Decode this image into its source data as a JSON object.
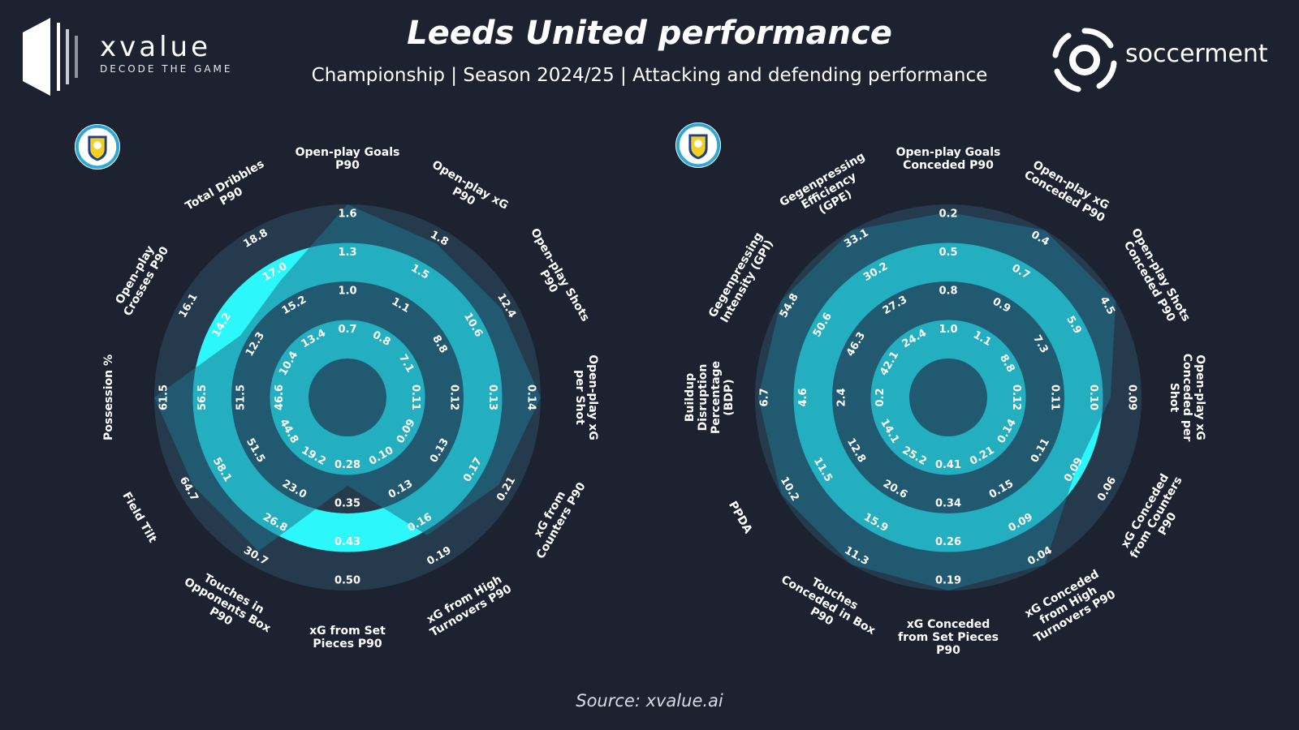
{
  "header": {
    "brand_name": "xvalue",
    "brand_tagline": "DECODE THE GAME",
    "title": "Leeds United performance",
    "subtitle": "Championship | Season 2024/25 | Attacking and defending performance",
    "partner_name": "soccerment",
    "source": "Source: xvalue.ai"
  },
  "colors": {
    "background": "#1c2230",
    "ring_dark": "#263a4d",
    "ring_light": "#2cf8fb",
    "overlay": "#1e7290",
    "crest_ring": "#2ba7d8",
    "crest_yellow": "#f4d020"
  },
  "chart_data": [
    {
      "type": "radar",
      "title": "",
      "scale": "percentile",
      "axes": [
        {
          "label": "Open-play Goals P90",
          "ticks": [
            "0.7",
            "1.0",
            "1.3",
            "1.6"
          ],
          "value": 1.0
        },
        {
          "label": "Open-play xG P90",
          "ticks": [
            "0.8",
            "1.1",
            "1.5",
            "1.8"
          ],
          "value": 0.9
        },
        {
          "label": "Open-play Shots P90",
          "ticks": [
            "7.1",
            "8.8",
            "10.6",
            "12.4"
          ],
          "value": 0.9
        },
        {
          "label": "Open-play xG per Shot",
          "ticks": [
            "0.11",
            "0.12",
            "0.13",
            "0.14"
          ],
          "value": 1.0
        },
        {
          "label": "xG from Counters P90",
          "ticks": [
            "0.09",
            "0.13",
            "0.17",
            "0.21"
          ],
          "value": 0.88
        },
        {
          "label": "xG from High Turnovers P90",
          "ticks": [
            "0.10",
            "0.13",
            "0.16",
            "0.19"
          ],
          "value": 0.78
        },
        {
          "label": "xG from Set Pieces P90",
          "ticks": [
            "0.28",
            "0.35",
            "0.43",
            "0.50"
          ],
          "value": 0.32
        },
        {
          "label": "Touches in Opponents Box P90",
          "ticks": [
            "19.2",
            "23.0",
            "26.8",
            "30.7"
          ],
          "value": 0.9
        },
        {
          "label": "Field Tilt",
          "ticks": [
            "44.8",
            "51.5",
            "58.1",
            "64.7"
          ],
          "value": 0.9
        },
        {
          "label": "Possession %",
          "ticks": [
            "46.6",
            "51.5",
            "56.5",
            "61.5"
          ],
          "value": 1.0
        },
        {
          "label": "Open-play Crosses P90",
          "ticks": [
            "10.4",
            "12.3",
            "14.2",
            "16.1"
          ],
          "value": 0.55
        },
        {
          "label": "Total Dribbles P90",
          "ticks": [
            "13.4",
            "15.2",
            "17.0",
            "18.8"
          ],
          "value": 0.62
        }
      ]
    },
    {
      "type": "radar",
      "title": "",
      "scale": "percentile",
      "axes": [
        {
          "label": "Open-play Goals Conceded P90",
          "ticks": [
            "1.0",
            "0.8",
            "0.5",
            "0.2"
          ],
          "value": 0.95
        },
        {
          "label": "Open-play xG Conceded P90",
          "ticks": [
            "1.1",
            "0.9",
            "0.7",
            "0.4"
          ],
          "value": 1.0
        },
        {
          "label": "Open-play Shots Conceded P90",
          "ticks": [
            "8.8",
            "7.3",
            "5.9",
            "4.5"
          ],
          "value": 1.0
        },
        {
          "label": "Open-play xG Conceded per Shot",
          "ticks": [
            "0.12",
            "0.11",
            "0.10",
            "0.09"
          ],
          "value": 0.8
        },
        {
          "label": "xG Conceded from Counters P90",
          "ticks": [
            "0.14",
            "0.11",
            "0.09",
            "0.06"
          ],
          "value": 0.7
        },
        {
          "label": "xG Conceded from High Turnovers P90",
          "ticks": [
            "0.21",
            "0.15",
            "0.09",
            "0.04"
          ],
          "value": 1.0
        },
        {
          "label": "xG Conceded from Set Pieces P90",
          "ticks": [
            "0.41",
            "0.34",
            "0.26",
            "0.19"
          ],
          "value": 1.0
        },
        {
          "label": "Touches Conceded in Box P90",
          "ticks": [
            "25.2",
            "20.6",
            "15.9",
            "11.3"
          ],
          "value": 1.0
        },
        {
          "label": "PPDA",
          "ticks": [
            "14.1",
            "12.8",
            "11.5",
            "10.2"
          ],
          "value": 1.0
        },
        {
          "label": "Buildup Disruption Percentage (BDP)",
          "ticks": [
            "0.2",
            "2.4",
            "4.6",
            "6.7"
          ],
          "value": 0.98
        },
        {
          "label": "Gegenpressing Intensity (GPI)",
          "ticks": [
            "42.1",
            "46.3",
            "50.6",
            "54.8"
          ],
          "value": 1.0
        },
        {
          "label": "Gegenpressing Efficiency (GPE)",
          "ticks": [
            "24.4",
            "27.3",
            "30.2",
            "33.1"
          ],
          "value": 1.0
        }
      ]
    }
  ]
}
